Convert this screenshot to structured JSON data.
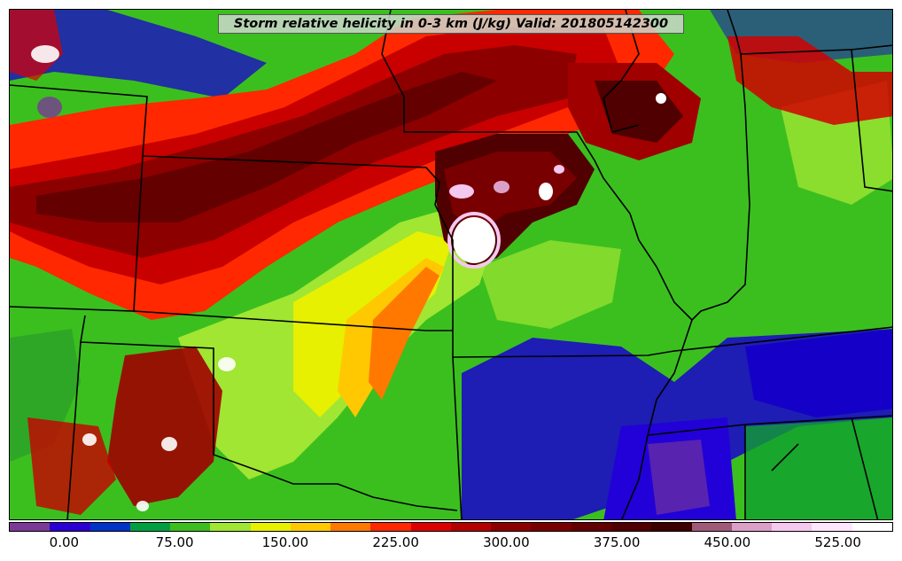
{
  "title": "Storm relative helicity in 0-3 km (J/kg) Valid: 201805142300",
  "colorbar": {
    "colors": [
      "#7b3a95",
      "#2b00d2",
      "#0032c8",
      "#00a040",
      "#3cbe1e",
      "#a0e632",
      "#e6f000",
      "#ffc800",
      "#ff7800",
      "#ff2800",
      "#dc0000",
      "#b40000",
      "#8c0000",
      "#780000",
      "#640000",
      "#500000",
      "#3c0000",
      "#a05a78",
      "#dca0c8",
      "#f5c8f0",
      "#ffe6ff",
      "#ffffff"
    ],
    "tick_labels": [
      "0.00",
      "75.00",
      "150.00",
      "225.00",
      "300.00",
      "375.00",
      "450.00",
      "525.00"
    ],
    "tick_values": [
      0,
      75,
      150,
      225,
      300,
      375,
      450,
      525
    ],
    "range": [
      -37.5,
      562.5
    ]
  },
  "map_colors": {
    "background_green": "#3bbf1f",
    "state_lines": "#000000"
  }
}
